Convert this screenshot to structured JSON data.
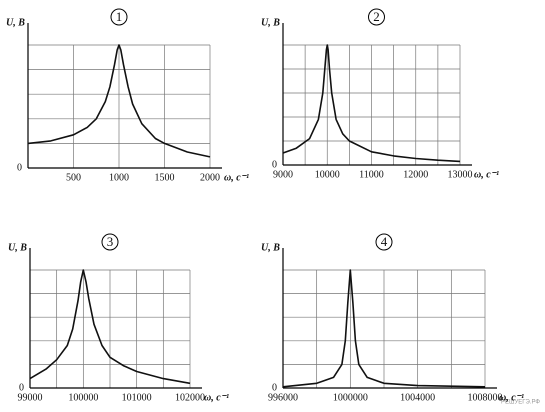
{
  "chart_data": [
    {
      "type": "line",
      "title": "1",
      "ylabel": "U, В",
      "xlabel": "ω, с⁻¹",
      "xlim": [
        0,
        2000
      ],
      "ylim": [
        0,
        5
      ],
      "xticks": [
        {
          "value": 0,
          "label": null
        },
        500,
        1000,
        1500,
        2000
      ],
      "yticks": [
        0,
        {
          "value": 1,
          "label": null
        },
        {
          "value": 2,
          "label": null
        },
        {
          "value": 3,
          "label": null
        },
        {
          "value": 4,
          "label": null
        },
        {
          "value": 5,
          "label": null
        }
      ],
      "grid": true,
      "series": [
        {
          "color": "#111111",
          "x": [
            0,
            250,
            500,
            650,
            750,
            850,
            900,
            950,
            980,
            1000,
            1020,
            1050,
            1100,
            1150,
            1250,
            1400,
            1500,
            1750,
            2000
          ],
          "values": [
            1.0,
            1.1,
            1.35,
            1.65,
            2.0,
            2.7,
            3.3,
            4.2,
            4.8,
            5.0,
            4.8,
            4.2,
            3.3,
            2.6,
            1.8,
            1.2,
            1.0,
            0.65,
            0.45
          ]
        }
      ]
    },
    {
      "type": "line",
      "title": "2",
      "ylabel": "U, В",
      "xlabel": "ω, с⁻¹",
      "xlim": [
        9000,
        13000
      ],
      "ylim": [
        0,
        5
      ],
      "xticks": [
        9000,
        {
          "value": 9500,
          "label": null
        },
        10000,
        {
          "value": 10500,
          "label": null
        },
        11000,
        {
          "value": 11500,
          "label": null
        },
        12000,
        {
          "value": 12500,
          "label": null
        },
        13000
      ],
      "yticks": [
        0,
        {
          "value": 1,
          "label": null
        },
        {
          "value": 2,
          "label": null
        },
        {
          "value": 3,
          "label": null
        },
        {
          "value": 4,
          "label": null
        },
        {
          "value": 5,
          "label": null
        }
      ],
      "grid": true,
      "series": [
        {
          "color": "#111111",
          "x": [
            9000,
            9300,
            9600,
            9800,
            9900,
            9950,
            9980,
            10000,
            10020,
            10050,
            10100,
            10200,
            10350,
            10500,
            11000,
            11500,
            12000,
            12500,
            13000
          ],
          "values": [
            0.5,
            0.7,
            1.1,
            1.9,
            3.0,
            4.1,
            4.8,
            5.0,
            4.8,
            4.0,
            3.0,
            1.9,
            1.3,
            1.0,
            0.55,
            0.38,
            0.27,
            0.2,
            0.15
          ]
        }
      ]
    },
    {
      "type": "line",
      "title": "3",
      "ylabel": "U, В",
      "xlabel": "ω, с⁻¹",
      "xlim": [
        99000,
        102000
      ],
      "ylim": [
        0,
        5
      ],
      "xticks": [
        99000,
        {
          "value": 99500,
          "label": null
        },
        100000,
        {
          "value": 100500,
          "label": null
        },
        101000,
        {
          "value": 101500,
          "label": null
        },
        102000
      ],
      "yticks": [
        0,
        {
          "value": 1,
          "label": null
        },
        {
          "value": 2,
          "label": null
        },
        {
          "value": 3,
          "label": null
        },
        {
          "value": 4,
          "label": null
        },
        {
          "value": 5,
          "label": null
        }
      ],
      "grid": true,
      "series": [
        {
          "color": "#111111",
          "x": [
            99000,
            99300,
            99500,
            99700,
            99800,
            99900,
            99950,
            100000,
            100050,
            100100,
            100200,
            100350,
            100500,
            100750,
            101000,
            101500,
            102000
          ],
          "values": [
            0.4,
            0.8,
            1.2,
            1.8,
            2.5,
            3.7,
            4.5,
            5.0,
            4.5,
            3.8,
            2.7,
            1.8,
            1.3,
            0.95,
            0.7,
            0.4,
            0.2
          ]
        }
      ]
    },
    {
      "type": "line",
      "title": "4",
      "ylabel": "U, В",
      "xlabel": "ω, с⁻¹",
      "xlim": [
        996000,
        1008000
      ],
      "ylim": [
        0,
        5
      ],
      "xticks": [
        996000,
        {
          "value": 998000,
          "label": null
        },
        1000000,
        {
          "value": 1002000,
          "label": null
        },
        1004000,
        {
          "value": 1006000,
          "label": null
        },
        1008000
      ],
      "yticks": [
        0,
        {
          "value": 1,
          "label": null
        },
        {
          "value": 2,
          "label": null
        },
        {
          "value": 3,
          "label": null
        },
        {
          "value": 4,
          "label": null
        },
        {
          "value": 5,
          "label": null
        }
      ],
      "grid": true,
      "series": [
        {
          "color": "#111111",
          "x": [
            996000,
            998000,
            999000,
            999500,
            999700,
            999850,
            1000000,
            1000150,
            1000300,
            1000500,
            1001000,
            1002000,
            1004000,
            1008000
          ],
          "values": [
            0.05,
            0.2,
            0.45,
            1.0,
            2.0,
            3.6,
            5.0,
            3.6,
            2.0,
            1.0,
            0.45,
            0.2,
            0.1,
            0.05
          ]
        }
      ]
    }
  ],
  "watermark": "РЕШУЕГЭ.РФ"
}
